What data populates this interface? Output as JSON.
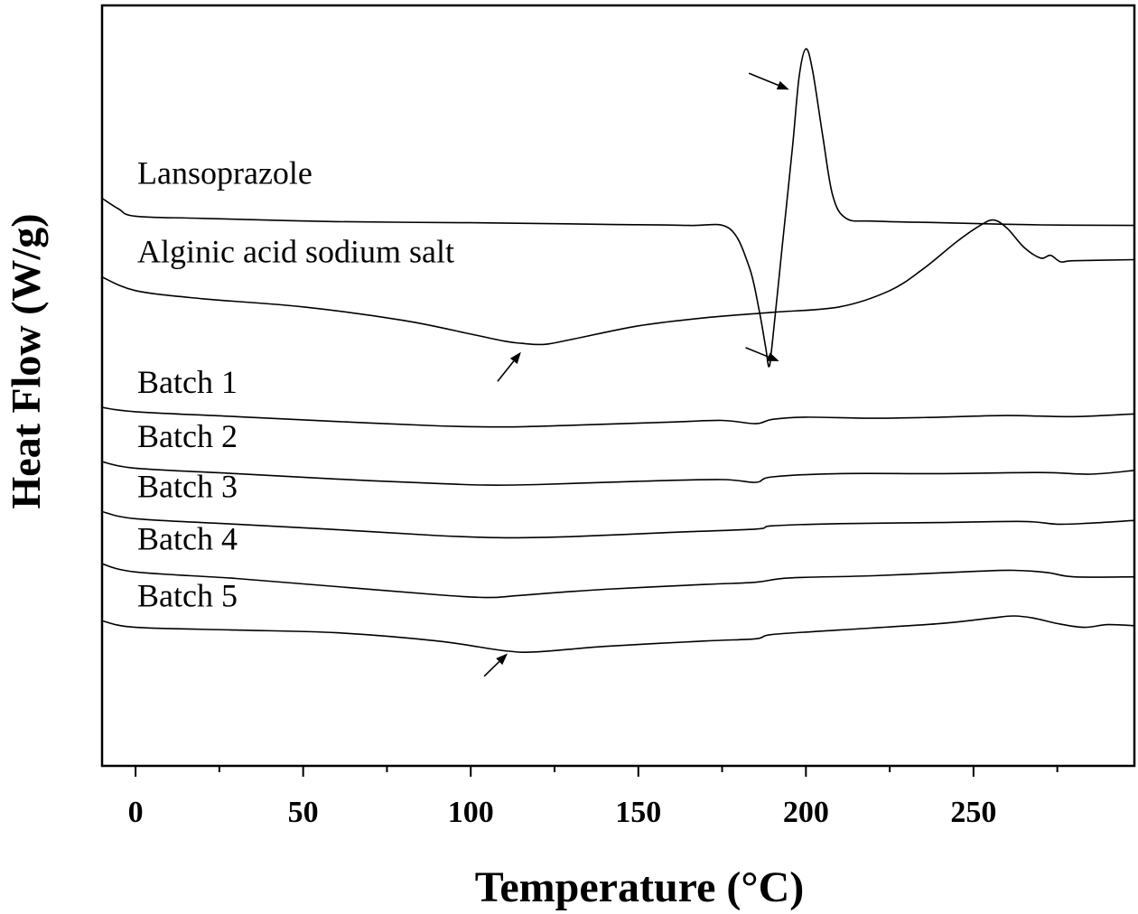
{
  "chart_data": {
    "type": "line",
    "xlabel": "Temperature (°C)",
    "ylabel": "Heat Flow (W/g)",
    "xlim": [
      -10,
      298
    ],
    "xticks": [
      0,
      50,
      100,
      150,
      200,
      250
    ],
    "minor_step": 25,
    "y_units": "arbitrary, stacked offsets",
    "grid": false,
    "series": [
      {
        "name": "Lansoprazole",
        "x": [
          -10,
          -5,
          0,
          20,
          60,
          100,
          140,
          165,
          177,
          183,
          186,
          188,
          189,
          190,
          193,
          196,
          198,
          200,
          202,
          205,
          208,
          212,
          220,
          240,
          270,
          298
        ],
        "y": [
          8.45,
          8.25,
          8.12,
          8.08,
          8.02,
          8.0,
          7.97,
          7.95,
          7.9,
          7.2,
          6.4,
          5.7,
          5.35,
          5.8,
          7.6,
          9.4,
          10.7,
          11.2,
          10.8,
          9.6,
          8.5,
          8.08,
          8.03,
          8.0,
          7.96,
          7.95
        ]
      },
      {
        "name": "Alginic acid sodium salt",
        "x": [
          -10,
          0,
          20,
          50,
          80,
          100,
          110,
          115,
          122,
          130,
          150,
          170,
          190,
          210,
          225,
          235,
          245,
          252,
          256,
          260,
          265,
          270,
          273,
          276,
          280,
          298
        ],
        "y": [
          7.0,
          6.75,
          6.6,
          6.45,
          6.2,
          5.95,
          5.82,
          5.78,
          5.76,
          5.85,
          6.1,
          6.25,
          6.35,
          6.45,
          6.75,
          7.15,
          7.65,
          7.95,
          8.05,
          7.9,
          7.55,
          7.35,
          7.4,
          7.28,
          7.3,
          7.32
        ]
      },
      {
        "name": "Batch 1",
        "x": [
          -10,
          0,
          30,
          60,
          90,
          110,
          130,
          160,
          175,
          185,
          190,
          200,
          220,
          240,
          260,
          280,
          298
        ],
        "y": [
          4.6,
          4.52,
          4.43,
          4.34,
          4.26,
          4.24,
          4.27,
          4.33,
          4.36,
          4.3,
          4.38,
          4.42,
          4.4,
          4.42,
          4.45,
          4.43,
          4.48
        ]
      },
      {
        "name": "Batch 2",
        "x": [
          -10,
          0,
          30,
          60,
          90,
          105,
          120,
          150,
          175,
          185,
          190,
          210,
          240,
          270,
          285,
          298
        ],
        "y": [
          3.6,
          3.48,
          3.38,
          3.28,
          3.2,
          3.17,
          3.18,
          3.24,
          3.27,
          3.22,
          3.32,
          3.38,
          3.38,
          3.4,
          3.37,
          3.44
        ]
      },
      {
        "name": "Batch 3",
        "x": [
          -10,
          0,
          30,
          60,
          90,
          110,
          130,
          160,
          185,
          190,
          210,
          240,
          265,
          275,
          285,
          298
        ],
        "y": [
          2.68,
          2.55,
          2.45,
          2.35,
          2.24,
          2.2,
          2.22,
          2.3,
          2.36,
          2.42,
          2.46,
          2.48,
          2.5,
          2.45,
          2.47,
          2.52
        ]
      },
      {
        "name": "Batch 4",
        "x": [
          -10,
          0,
          30,
          60,
          90,
          105,
          115,
          140,
          170,
          185,
          195,
          220,
          250,
          262,
          272,
          280,
          298
        ],
        "y": [
          1.72,
          1.57,
          1.45,
          1.3,
          1.15,
          1.1,
          1.14,
          1.25,
          1.34,
          1.38,
          1.46,
          1.5,
          1.58,
          1.6,
          1.56,
          1.48,
          1.48
        ]
      },
      {
        "name": "Batch 5",
        "x": [
          -10,
          0,
          30,
          60,
          90,
          110,
          120,
          140,
          170,
          185,
          190,
          210,
          240,
          255,
          262,
          268,
          275,
          283,
          290,
          298
        ],
        "y": [
          0.67,
          0.55,
          0.5,
          0.45,
          0.3,
          0.12,
          0.1,
          0.2,
          0.3,
          0.34,
          0.42,
          0.5,
          0.62,
          0.72,
          0.76,
          0.72,
          0.62,
          0.55,
          0.6,
          0.58
        ]
      }
    ],
    "annotations": [
      {
        "type": "arrow",
        "from": [
          183,
          10.75
        ],
        "to": [
          195,
          10.45
        ]
      },
      {
        "type": "arrow",
        "from": [
          182,
          5.7
        ],
        "to": [
          192,
          5.45
        ]
      },
      {
        "type": "arrow",
        "from": [
          108,
          5.08
        ],
        "to": [
          115,
          5.62
        ]
      },
      {
        "type": "arrow",
        "from": [
          104,
          -0.35
        ],
        "to": [
          111,
          0.07
        ]
      }
    ]
  }
}
